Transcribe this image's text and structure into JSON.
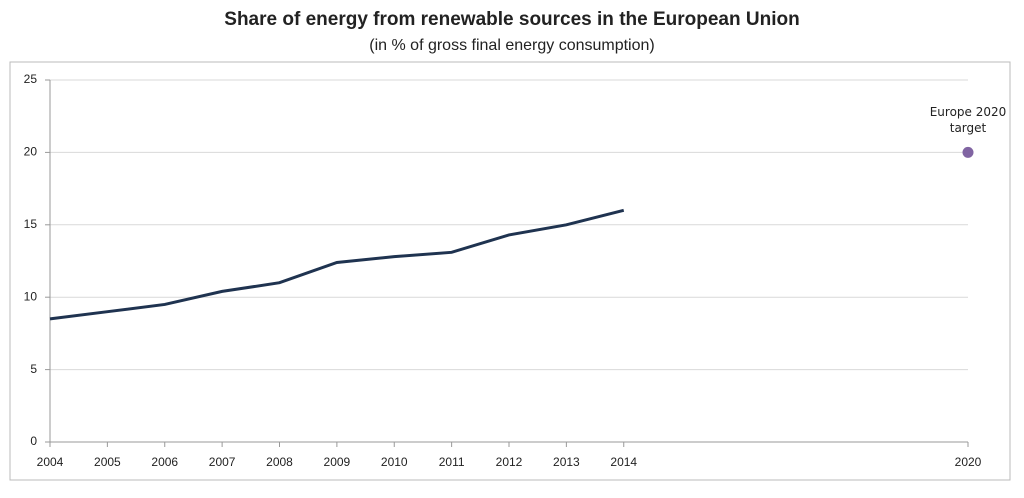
{
  "chart_data": {
    "type": "line",
    "title": "Share of energy from renewable sources in the European Union",
    "subtitle": "(in % of gross final energy consumption)",
    "series": [
      {
        "type": "line",
        "color": "#1f3350",
        "x": [
          2004,
          2005,
          2006,
          2007,
          2008,
          2009,
          2010,
          2011,
          2012,
          2013,
          2014
        ],
        "values": [
          8.5,
          9.0,
          9.5,
          10.4,
          11.0,
          12.4,
          12.8,
          13.1,
          14.3,
          15.0,
          16.0
        ]
      },
      {
        "type": "scatter",
        "color": "#8064a2",
        "x": [
          2020
        ],
        "values": [
          20
        ]
      }
    ],
    "annotation": "Europe 2020 target",
    "xlim": [
      2004,
      2020
    ],
    "xticks": [
      2004,
      2005,
      2006,
      2007,
      2008,
      2009,
      2010,
      2011,
      2012,
      2013,
      2014,
      2020
    ],
    "ylim": [
      0,
      25
    ],
    "yticks": [
      0,
      5,
      10,
      15,
      20,
      25
    ],
    "grid": true
  }
}
